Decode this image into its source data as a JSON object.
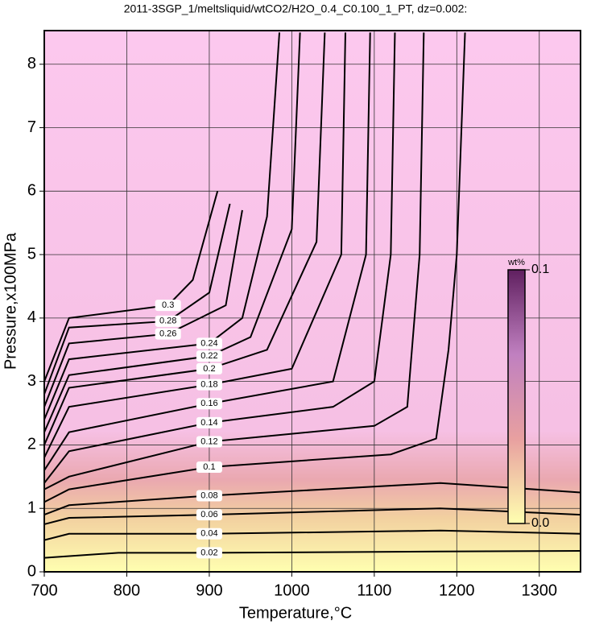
{
  "chart_data": {
    "type": "contour",
    "title": "2011-3SGP_1/meltsliquid/wtCO2/H2O_0.4_C0.100_1_PT, dz=0.002:",
    "x_label": "Temperature,°C",
    "y_label": "Pressure,x100MPa",
    "xlim": [
      700,
      1350
    ],
    "ylim": [
      0,
      8.53
    ],
    "xticks": [
      700,
      800,
      900,
      1000,
      1100,
      1200,
      1300
    ],
    "yticks": [
      0,
      1,
      2,
      3,
      4,
      5,
      6,
      7,
      8
    ],
    "grid": true,
    "line_color": "#000000",
    "colorbar": {
      "title": "wt%",
      "lim": [
        0,
        0.1
      ],
      "ticks": [
        {
          "value": 0,
          "label": "0.0"
        },
        0.1
      ],
      "colors": [
        "#ffffb0",
        "#e8a0a0",
        "#c080c0",
        "#602060"
      ]
    },
    "contours": [
      {
        "level": 0.02,
        "x": [
          700,
          790,
          900,
          1180,
          1350
        ],
        "y": [
          0.22,
          0.3,
          0.3,
          0.32,
          0.33
        ]
      },
      {
        "level": 0.04,
        "x": [
          700,
          730,
          900,
          1180,
          1350
        ],
        "y": [
          0.5,
          0.6,
          0.6,
          0.65,
          0.6
        ]
      },
      {
        "level": 0.06,
        "x": [
          700,
          730,
          900,
          1180,
          1350
        ],
        "y": [
          0.75,
          0.85,
          0.9,
          1.0,
          0.9
        ]
      },
      {
        "level": 0.08,
        "x": [
          700,
          730,
          900,
          1180,
          1350
        ],
        "y": [
          0.9,
          1.05,
          1.2,
          1.4,
          1.25
        ]
      },
      {
        "level": 0.1,
        "x": [
          700,
          730,
          900,
          1120,
          1175,
          1190,
          1200,
          1210
        ],
        "y": [
          1.1,
          1.3,
          1.65,
          1.85,
          2.1,
          3.5,
          5,
          8.5
        ]
      },
      {
        "level": 0.12,
        "x": [
          700,
          730,
          900,
          1100,
          1140,
          1155,
          1160
        ],
        "y": [
          1.3,
          1.5,
          2.05,
          2.3,
          2.6,
          5,
          8.5
        ]
      },
      {
        "level": 0.14,
        "x": [
          700,
          730,
          900,
          1050,
          1100,
          1120,
          1125
        ],
        "y": [
          1.4,
          1.9,
          2.35,
          2.6,
          3.0,
          5,
          8.5
        ]
      },
      {
        "level": 0.16,
        "x": [
          700,
          730,
          900,
          1050,
          1090,
          1095
        ],
        "y": [
          1.6,
          2.2,
          2.65,
          3.0,
          5,
          8.5
        ]
      },
      {
        "level": 0.18,
        "x": [
          700,
          730,
          900,
          1000,
          1060,
          1065
        ],
        "y": [
          1.8,
          2.6,
          2.95,
          3.2,
          5,
          8.5
        ]
      },
      {
        "level": 0.2,
        "x": [
          700,
          730,
          900,
          970,
          1030,
          1040
        ],
        "y": [
          2.0,
          2.9,
          3.2,
          3.5,
          5.2,
          8.5
        ]
      },
      {
        "level": 0.22,
        "x": [
          700,
          730,
          900,
          950,
          1000,
          1010
        ],
        "y": [
          2.2,
          3.1,
          3.4,
          3.7,
          5.4,
          8.5
        ]
      },
      {
        "level": 0.24,
        "x": [
          700,
          730,
          900,
          940,
          970,
          985
        ],
        "y": [
          2.4,
          3.35,
          3.6,
          4.0,
          5.6,
          8.5
        ]
      },
      {
        "level": 0.26,
        "x": [
          700,
          730,
          850,
          920,
          940
        ],
        "y": [
          2.6,
          3.6,
          3.75,
          4.2,
          5.7
        ]
      },
      {
        "level": 0.28,
        "x": [
          700,
          730,
          850,
          900,
          925
        ],
        "y": [
          2.8,
          3.85,
          3.95,
          4.4,
          5.8
        ]
      },
      {
        "level": 0.3,
        "x": [
          700,
          730,
          850,
          880,
          910
        ],
        "y": [
          3.0,
          4.0,
          4.2,
          4.6,
          6.0
        ]
      }
    ]
  }
}
